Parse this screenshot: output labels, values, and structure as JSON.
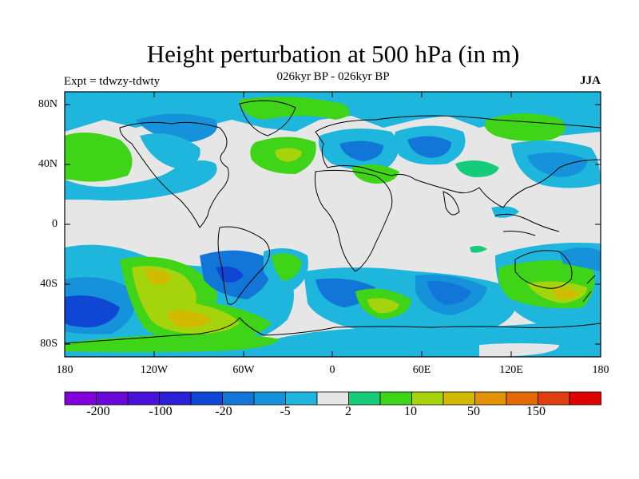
{
  "title": "Height perturbation at 500 hPa (in m)",
  "subtitle": "026kyr BP - 026kyr BP",
  "left_label": "Expt = tdwzy-tdwty",
  "right_label": "JJA",
  "y_ticks": [
    "80N",
    "40N",
    "0",
    "40S",
    "80S"
  ],
  "x_ticks": [
    "180",
    "120W",
    "60W",
    "0",
    "60E",
    "120E",
    "180"
  ],
  "colorbar": {
    "colors": [
      "#7f00d9",
      "#6a08d8",
      "#4a12d8",
      "#2d1fd6",
      "#0f46d4",
      "#1276d8",
      "#1592d9",
      "#1fb6dd",
      "#e6e6e6",
      "#16cc7a",
      "#3fd418",
      "#a5d40c",
      "#d2ba00",
      "#e49300",
      "#e26900",
      "#df3f10",
      "#e00000"
    ],
    "labels": [
      "-200",
      "-100",
      "-20",
      "-5",
      "2",
      "10",
      "50",
      "150"
    ]
  },
  "colors": {
    "neutral": "#e6e6e6",
    "coast": "#000000"
  }
}
